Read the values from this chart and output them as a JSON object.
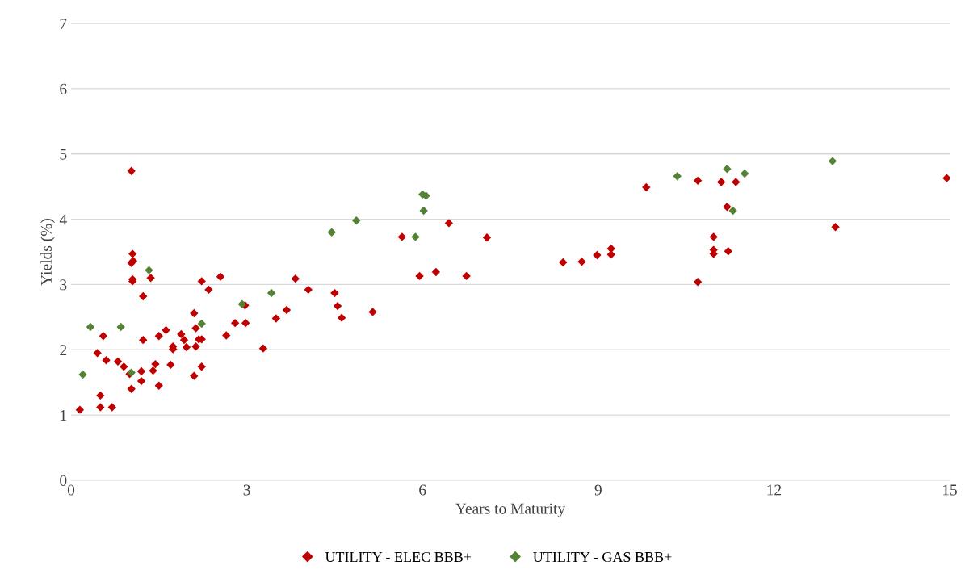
{
  "chart_data": {
    "type": "scatter",
    "xlabel": "Years to Maturity",
    "ylabel": "Yields (%)",
    "xlim": [
      0,
      15
    ],
    "xticks": [
      0,
      3,
      6,
      9,
      12,
      15
    ],
    "ylim": [
      0,
      7
    ],
    "yticks": [
      0,
      1,
      2,
      3,
      4,
      5,
      6,
      7
    ],
    "grid": "y",
    "legend": "bottom",
    "marker": "diamond",
    "series": [
      {
        "name": "UTILITY - ELEC BBB+",
        "color": "#c00000",
        "x": [
          0.15,
          0.45,
          0.5,
          0.5,
          0.55,
          0.6,
          0.7,
          0.8,
          0.9,
          1.0,
          1.03,
          1.05,
          1.03,
          1.06,
          1.05,
          1.05,
          1.03,
          1.2,
          1.2,
          1.23,
          1.23,
          1.36,
          1.4,
          1.44,
          1.5,
          1.5,
          1.62,
          1.7,
          1.74,
          1.74,
          1.88,
          1.93,
          1.97,
          2.1,
          2.1,
          2.13,
          2.13,
          2.18,
          2.23,
          2.23,
          2.23,
          2.35,
          2.55,
          2.65,
          2.8,
          2.97,
          2.98,
          3.28,
          3.5,
          3.68,
          3.83,
          4.05,
          4.5,
          4.55,
          4.62,
          5.15,
          5.65,
          5.95,
          6.23,
          6.45,
          6.75,
          7.1,
          8.4,
          8.72,
          8.98,
          9.22,
          9.22,
          9.82,
          10.7,
          10.7,
          10.97,
          10.97,
          10.97,
          11.1,
          11.2,
          11.22,
          11.35,
          13.05,
          14.95
        ],
        "values": [
          1.08,
          1.95,
          1.3,
          1.12,
          2.21,
          1.84,
          1.12,
          1.82,
          1.74,
          1.63,
          4.74,
          3.47,
          3.33,
          3.36,
          3.08,
          3.05,
          1.4,
          1.67,
          1.52,
          2.82,
          2.15,
          3.1,
          1.68,
          1.78,
          2.21,
          1.45,
          2.3,
          1.77,
          2.05,
          2.01,
          2.24,
          2.15,
          2.04,
          2.56,
          1.6,
          2.33,
          2.05,
          2.16,
          2.16,
          3.05,
          1.74,
          2.92,
          3.12,
          2.22,
          2.41,
          2.68,
          2.41,
          2.02,
          2.48,
          2.61,
          3.09,
          2.92,
          2.87,
          2.67,
          2.49,
          2.58,
          3.73,
          3.13,
          3.19,
          3.94,
          3.13,
          3.72,
          3.34,
          3.35,
          3.45,
          3.55,
          3.46,
          4.49,
          4.59,
          3.04,
          3.73,
          3.53,
          3.47,
          4.57,
          4.19,
          3.51,
          4.57,
          3.88,
          4.63
        ]
      },
      {
        "name": "UTILITY - GAS BBB+",
        "color": "#548235",
        "x": [
          0.2,
          0.33,
          0.85,
          1.03,
          1.33,
          2.23,
          2.92,
          3.42,
          4.45,
          4.87,
          5.88,
          6.0,
          6.06,
          6.02,
          10.35,
          11.2,
          11.3,
          11.5,
          13.0
        ],
        "values": [
          1.62,
          2.35,
          2.35,
          1.65,
          3.22,
          2.4,
          2.7,
          2.87,
          3.8,
          3.98,
          3.73,
          4.38,
          4.36,
          4.13,
          4.66,
          4.77,
          4.13,
          4.7,
          4.89
        ]
      }
    ]
  }
}
